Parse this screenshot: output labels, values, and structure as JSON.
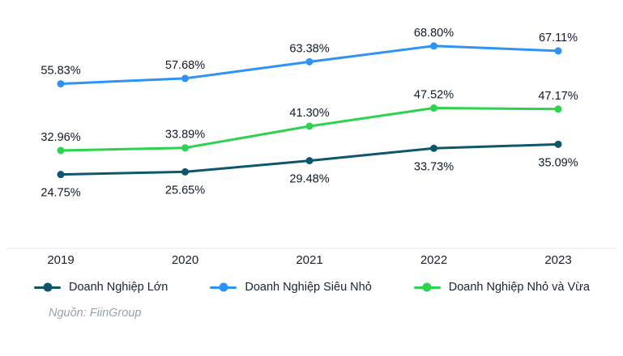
{
  "chart_data": {
    "type": "line",
    "title": "",
    "xlabel": "",
    "ylabel": "",
    "categories": [
      "2019",
      "2020",
      "2021",
      "2022",
      "2023"
    ],
    "series": [
      {
        "name": "Doanh Nghiệp Lớn",
        "color": "#0e566c",
        "values": [
          24.75,
          25.65,
          29.48,
          33.73,
          35.09
        ],
        "label_position": "below"
      },
      {
        "name": "Doanh Nghiệp Siêu Nhỏ",
        "color": "#2e93f5",
        "values": [
          55.83,
          57.68,
          63.38,
          68.8,
          67.11
        ],
        "label_position": "above"
      },
      {
        "name": "Doanh Nghiệp Nhỏ và Vừa",
        "color": "#2bd34f",
        "values": [
          32.96,
          33.89,
          41.3,
          47.52,
          47.17
        ],
        "label_position": "above"
      }
    ],
    "label_format": "0.00%",
    "ylim": [
      18,
      79
    ],
    "grid": false,
    "legend_position": "bottom"
  },
  "source": "Nguồn: FiinGroup"
}
